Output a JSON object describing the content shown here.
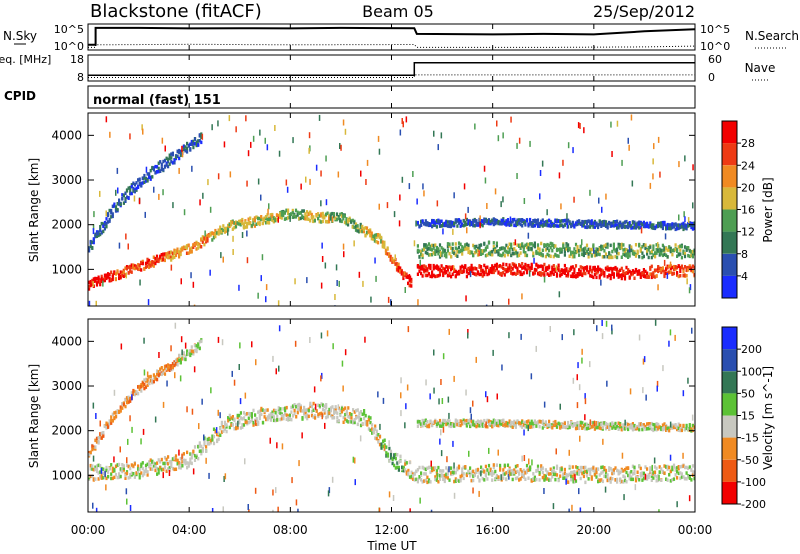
{
  "header": {
    "station": "Blackstone (fitACF)",
    "beam": "Beam 05",
    "date": "25/Sep/2012"
  },
  "time_axis": {
    "tick_labels": [
      "00:00",
      "04:00",
      "08:00",
      "12:00",
      "16:00",
      "20:00",
      "00:00"
    ],
    "xlabel": "Time UT"
  },
  "chart_data": [
    {
      "type": "line",
      "title": "",
      "left_label": "N.Sky",
      "right_label": "N.Search",
      "left_ticks": [
        "10^5",
        "10^0"
      ],
      "right_ticks": [
        "10^5",
        "10^0"
      ],
      "series": [
        {
          "key": "nsky",
          "style": "solid",
          "x_hours": [
            0,
            0.3,
            0.3,
            2,
            4,
            6,
            8,
            10,
            12.9,
            13,
            16,
            18,
            20,
            22,
            24
          ],
          "level": [
            0.2,
            0.2,
            0.85,
            0.85,
            0.83,
            0.84,
            0.83,
            0.85,
            0.84,
            0.62,
            0.6,
            0.62,
            0.6,
            0.72,
            0.8
          ]
        },
        {
          "key": "nsearch",
          "style": "dotted",
          "x_hours": [
            0,
            0.3,
            0.3,
            4,
            8,
            12.9,
            13,
            18,
            22,
            24
          ],
          "level": [
            0.1,
            0.1,
            0.2,
            0.22,
            0.2,
            0.21,
            0.1,
            0.1,
            0.12,
            0.15
          ]
        }
      ]
    },
    {
      "type": "line",
      "title": "",
      "left_label": "Freq. [MHz]",
      "right_label": "Nave",
      "left_ticks": [
        "18",
        "8"
      ],
      "right_ticks": [
        "60",
        "0"
      ],
      "series": [
        {
          "key": "freq_mhz",
          "style": "solid",
          "x_hours": [
            0,
            12.9,
            12.9,
            24
          ],
          "values": [
            10.2,
            10.2,
            15.0,
            15.0
          ]
        },
        {
          "key": "nave",
          "style": "dotted",
          "x_hours": [
            0,
            12.9,
            12.9,
            24
          ],
          "values": [
            8,
            8,
            14,
            14
          ]
        }
      ]
    },
    {
      "type": "table",
      "label": "CPID",
      "value": "normal (fast) 151"
    },
    {
      "type": "heatmap",
      "title": "",
      "ylabel": "Slant Range [km]",
      "yticks": [
        1000,
        2000,
        3000,
        4000
      ],
      "ylim": [
        180,
        4500
      ],
      "xlim_hours": [
        0,
        24
      ],
      "colorbar_label": "Power [dB]",
      "colorbar_ticks": [
        "4",
        "8",
        "12",
        "16",
        "20",
        "24",
        "28"
      ],
      "colorbar_colors": [
        "#1a2cff",
        "#2a4fb0",
        "#337755",
        "#4e9e53",
        "#d8b83a",
        "#f08a22",
        "#ee3a14",
        "#f20000"
      ],
      "echo_bands": [
        {
          "name": "near-range",
          "x_hours": [
            0,
            2,
            4,
            5.5,
            7,
            8,
            9,
            10,
            11.5,
            12.3,
            12.8
          ],
          "range_km": [
            700,
            1100,
            1500,
            2000,
            2150,
            2300,
            2200,
            2200,
            1700,
            1000,
            700
          ],
          "width_km": 200,
          "color_levels": [
            7,
            6,
            5,
            4,
            4,
            3,
            4,
            3,
            4,
            6,
            7
          ]
        },
        {
          "name": "far-range",
          "x_hours": [
            0,
            1,
            2,
            3,
            4,
            4.5
          ],
          "range_km": [
            1500,
            2400,
            3000,
            3400,
            3800,
            4000
          ],
          "width_km": 250,
          "color_levels": [
            1,
            1,
            1,
            1,
            1,
            1
          ]
        },
        {
          "name": "afternoon",
          "x_hours": [
            13,
            15,
            17,
            19,
            21,
            23,
            24
          ],
          "range_km": [
            1000,
            1000,
            1050,
            1000,
            950,
            1000,
            1000
          ],
          "width_km": 250,
          "color_levels": [
            7,
            7,
            7,
            7,
            7,
            6,
            6
          ]
        },
        {
          "name": "afternoon-upper",
          "x_hours": [
            13,
            16,
            20,
            24
          ],
          "range_km": [
            2050,
            2100,
            2050,
            2000
          ],
          "width_km": 150,
          "color_levels": [
            1,
            1,
            1,
            1
          ]
        },
        {
          "name": "afternoon-mid",
          "x_hours": [
            13,
            16,
            20,
            24
          ],
          "range_km": [
            1450,
            1500,
            1450,
            1450
          ],
          "width_km": 300,
          "color_levels": [
            3,
            3,
            3,
            3
          ]
        }
      ]
    },
    {
      "type": "heatmap",
      "title": "",
      "ylabel": "Slant Range [km]",
      "yticks": [
        1000,
        2000,
        3000,
        4000
      ],
      "ylim": [
        180,
        4500
      ],
      "xlim_hours": [
        0,
        24
      ],
      "colorbar_label": "Velocity [m s^-1]",
      "colorbar_ticks": [
        "200",
        "100",
        "50",
        "15",
        "-15",
        "-50",
        "-100",
        "-200"
      ],
      "colorbar_colors": [
        "#1a2cff",
        "#2a4fb0",
        "#337755",
        "#5cc236",
        "#c8c8c0",
        "#f08a22",
        "#ee5a14",
        "#f20000"
      ],
      "echo_bands": [
        {
          "name": "ground-scatter",
          "x_hours": [
            0,
            2,
            4,
            5.5,
            7,
            9,
            11,
            12,
            13,
            16,
            20,
            24
          ],
          "range_km": [
            1100,
            1150,
            1400,
            2200,
            2400,
            2500,
            2300,
            1400,
            1050,
            1100,
            1050,
            1100
          ],
          "width_km": 350,
          "color_levels": [
            4,
            4,
            4,
            4,
            4,
            4,
            4,
            3,
            4,
            4,
            4,
            4
          ]
        },
        {
          "name": "far-range",
          "x_hours": [
            0,
            1,
            2,
            3,
            4,
            4.5
          ],
          "range_km": [
            1500,
            2400,
            3000,
            3400,
            3800,
            4000
          ],
          "width_km": 200,
          "color_levels": [
            5,
            5,
            5,
            5,
            4,
            4
          ]
        },
        {
          "name": "afternoon-upper",
          "x_hours": [
            13,
            16,
            20,
            24
          ],
          "range_km": [
            2200,
            2200,
            2150,
            2100
          ],
          "width_km": 150,
          "color_levels": [
            4,
            4,
            4,
            4
          ]
        }
      ]
    }
  ]
}
